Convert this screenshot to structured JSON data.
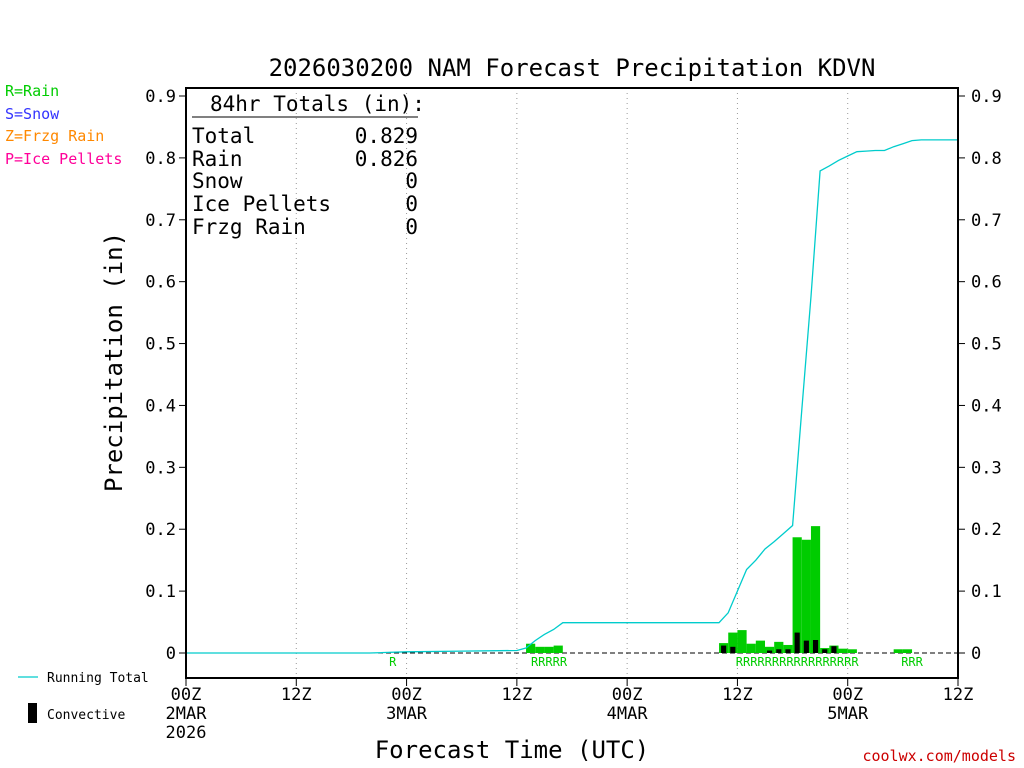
{
  "chart_data": {
    "type": "bar",
    "title": "2026030200 NAM Forecast Precipitation KDVN",
    "xlabel": "Forecast Time (UTC)",
    "ylabel": "Precipitation (in)",
    "ylim": [
      0,
      0.9
    ],
    "xlim_hours": [
      0,
      84
    ],
    "y_ticks": [
      "0",
      "0.1",
      "0.2",
      "0.3",
      "0.4",
      "0.5",
      "0.6",
      "0.7",
      "0.8",
      "0.9"
    ],
    "x_ticks": [
      {
        "hour": 0,
        "lines": [
          "00Z",
          "2MAR",
          "2026"
        ]
      },
      {
        "hour": 12,
        "lines": [
          "12Z"
        ]
      },
      {
        "hour": 24,
        "lines": [
          "00Z",
          "3MAR"
        ]
      },
      {
        "hour": 36,
        "lines": [
          "12Z"
        ]
      },
      {
        "hour": 48,
        "lines": [
          "00Z",
          "4MAR"
        ]
      },
      {
        "hour": 60,
        "lines": [
          "12Z"
        ]
      },
      {
        "hour": 72,
        "lines": [
          "00Z",
          "5MAR"
        ]
      },
      {
        "hour": 84,
        "lines": [
          "12Z"
        ]
      }
    ],
    "grid": "vertical dotted at 12-hour intervals",
    "legend_type": {
      "position": "left",
      "items": [
        {
          "label": "R=Rain",
          "color": "#00cc00"
        },
        {
          "label": "S=Snow",
          "color": "#3333ff"
        },
        {
          "label": "Z=Frzg Rain",
          "color": "#ff8800"
        },
        {
          "label": "P=Ice Pellets",
          "color": "#ff0099"
        }
      ]
    },
    "legend_series": {
      "position": "bottom-left",
      "items": [
        {
          "label": "Running Total",
          "color": "#00cccc",
          "kind": "line"
        },
        {
          "label": "Convective",
          "color": "#000000",
          "kind": "bar"
        }
      ]
    },
    "totals_box": {
      "heading": "84hr Totals (in):",
      "rows": [
        {
          "label": "Total",
          "value": "0.829"
        },
        {
          "label": "Rain",
          "value": "0.826"
        },
        {
          "label": "Snow",
          "value": "0"
        },
        {
          "label": "Ice Pellets",
          "value": "0"
        },
        {
          "label": "Frzg Rain",
          "value": "0"
        }
      ]
    },
    "hourly_precip": {
      "name": "Rain",
      "color": "#00cc00",
      "hours": [
        38,
        39,
        40,
        41,
        59,
        60,
        61,
        62,
        63,
        64,
        65,
        66,
        67,
        68,
        69,
        70,
        71,
        72,
        73,
        78,
        79
      ],
      "values": [
        0.015,
        0.01,
        0.01,
        0.012,
        0.016,
        0.033,
        0.037,
        0.015,
        0.02,
        0.01,
        0.018,
        0.013,
        0.187,
        0.183,
        0.205,
        0.008,
        0.012,
        0.007,
        0.006,
        0.006,
        0.006
      ]
    },
    "convective": {
      "name": "Convective",
      "color": "#000000",
      "hours": [
        59,
        60,
        64,
        65,
        66,
        67,
        68,
        69,
        70,
        71
      ],
      "values": [
        0.012,
        0.01,
        0.004,
        0.006,
        0.006,
        0.033,
        0.02,
        0.021,
        0.006,
        0.011
      ]
    },
    "running_total": {
      "name": "Running Total",
      "color": "#00cccc",
      "x": [
        0,
        20,
        22,
        24,
        30,
        36,
        37,
        38,
        39,
        40,
        41,
        44,
        48,
        54,
        58,
        59,
        60,
        61,
        62,
        63,
        64,
        65,
        66,
        67,
        68,
        69,
        70,
        71,
        72,
        73,
        74,
        75,
        76,
        77,
        78,
        79,
        80,
        81,
        84
      ],
      "y": [
        0,
        0,
        0.001,
        0.002,
        0.003,
        0.004,
        0.008,
        0.02,
        0.03,
        0.038,
        0.049,
        0.049,
        0.049,
        0.049,
        0.049,
        0.065,
        0.1,
        0.135,
        0.15,
        0.168,
        0.18,
        0.193,
        0.206,
        0.393,
        0.576,
        0.779,
        0.787,
        0.796,
        0.803,
        0.81,
        0.811,
        0.812,
        0.812,
        0.818,
        0.823,
        0.828,
        0.829,
        0.829,
        0.829
      ]
    },
    "type_markers": [
      {
        "hour": 22.5,
        "text": "R"
      },
      {
        "hour": 39.5,
        "text": "RRRRR"
      },
      {
        "hour": 66.5,
        "text": "RRRRRRRRRRRRRRRRR"
      },
      {
        "hour": 79,
        "text": "RRR"
      }
    ]
  },
  "watermark": "coolwx.com/models"
}
